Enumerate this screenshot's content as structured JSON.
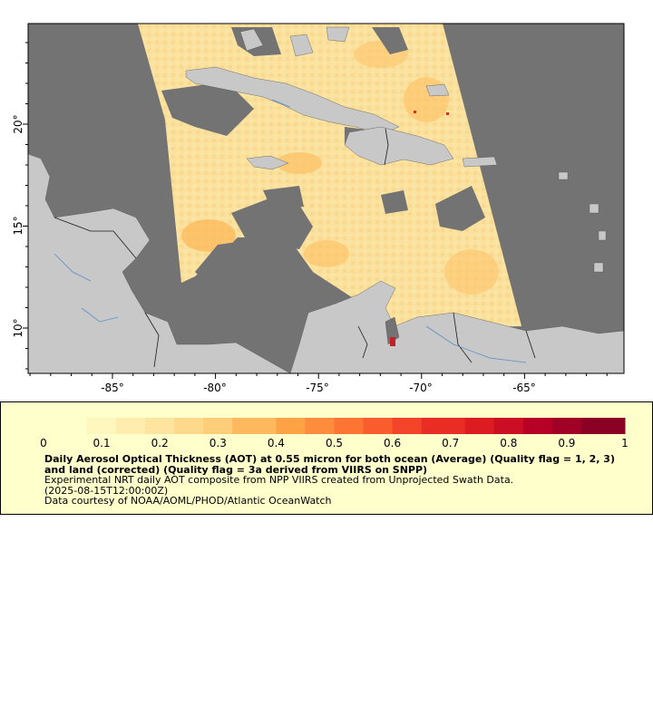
{
  "map": {
    "ocean_color": "#737373",
    "land_color": "#c8c8c8",
    "border_color": "#1a1a1a",
    "river_color": "#5a8fc4",
    "x_ticks": [
      "-85°",
      "-80°",
      "-75°",
      "-70°",
      "-65°"
    ],
    "y_ticks": [
      "20°",
      "15°",
      "10°"
    ]
  },
  "legend": {
    "title": "Daily Aerosol Optical Thickness (AOT) at 0.55 micron for both ocean (Average) (Quality flag = 1, 2, 3) and land (corrected) (Quality flag = 3a derived from VIIRS on SNPP)",
    "line1": "Experimental NRT daily AOT composite from NPP VIIRS created from Unprojected Swath Data.",
    "line2": "(2025-08-15T12:00:00Z)",
    "line3": "Data courtesy of NOAA/AOML/PHOD/Atlantic OceanWatch",
    "ticks": [
      "0",
      "0.1",
      "0.2",
      "0.3",
      "0.4",
      "0.5",
      "0.6",
      "0.7",
      "0.8",
      "0.9",
      "1"
    ],
    "colors": [
      "#ffffcc",
      "#fff6bd",
      "#ffedae",
      "#fee49f",
      "#fed98c",
      "#fecd79",
      "#feb85d",
      "#fea246",
      "#fd8d3c",
      "#fc7533",
      "#f95d2d",
      "#f3442a",
      "#e92d24",
      "#dc1c21",
      "#cc0e24",
      "#b70026",
      "#a00026",
      "#8a0025"
    ]
  }
}
